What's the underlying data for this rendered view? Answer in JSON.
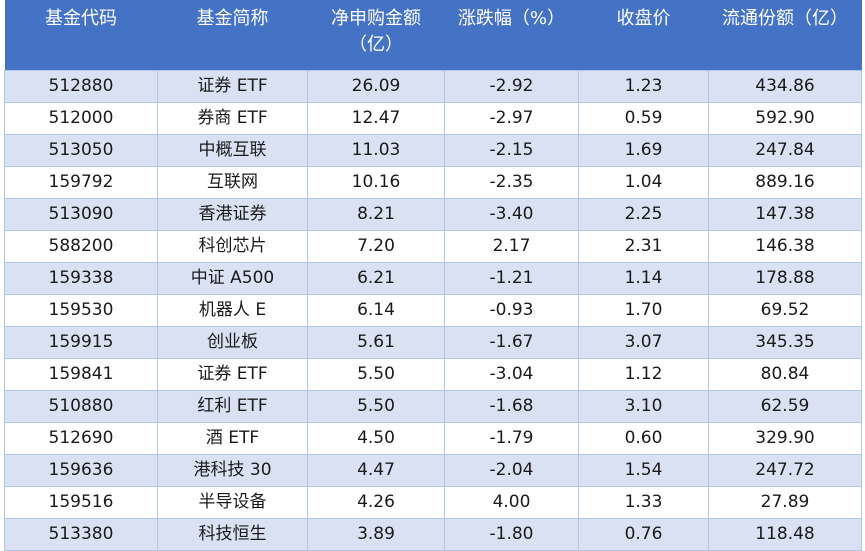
{
  "table": {
    "headers": [
      "基金代码",
      "基金简称",
      "净申购金额（亿）",
      "涨跌幅（%）",
      "收盘价",
      "流通份额（亿）"
    ],
    "rows": [
      [
        "512880",
        "证券 ETF",
        "26.09",
        "-2.92",
        "1.23",
        "434.86"
      ],
      [
        "512000",
        "券商 ETF",
        "12.47",
        "-2.97",
        "0.59",
        "592.90"
      ],
      [
        "513050",
        "中概互联",
        "11.03",
        "-2.15",
        "1.69",
        "247.84"
      ],
      [
        "159792",
        "互联网",
        "10.16",
        "-2.35",
        "1.04",
        "889.16"
      ],
      [
        "513090",
        "香港证券",
        "8.21",
        "-3.40",
        "2.25",
        "147.38"
      ],
      [
        "588200",
        "科创芯片",
        "7.20",
        "2.17",
        "2.31",
        "146.38"
      ],
      [
        "159338",
        "中证 A500",
        "6.21",
        "-1.21",
        "1.14",
        "178.88"
      ],
      [
        "159530",
        "机器人 E",
        "6.14",
        "-0.93",
        "1.70",
        "69.52"
      ],
      [
        "159915",
        "创业板",
        "5.61",
        "-1.67",
        "3.07",
        "345.35"
      ],
      [
        "159841",
        "证券 ETF",
        "5.50",
        "-3.04",
        "1.12",
        "80.84"
      ],
      [
        "510880",
        "红利 ETF",
        "5.50",
        "-1.68",
        "3.10",
        "62.59"
      ],
      [
        "512690",
        "酒 ETF",
        "4.50",
        "-1.79",
        "0.60",
        "329.90"
      ],
      [
        "159636",
        "港科技 30",
        "4.47",
        "-2.04",
        "1.54",
        "247.72"
      ],
      [
        "159516",
        "半导设备",
        "4.26",
        "4.00",
        "1.33",
        "27.89"
      ],
      [
        "513380",
        "科技恒生",
        "3.89",
        "-1.80",
        "0.76",
        "118.48"
      ]
    ]
  }
}
